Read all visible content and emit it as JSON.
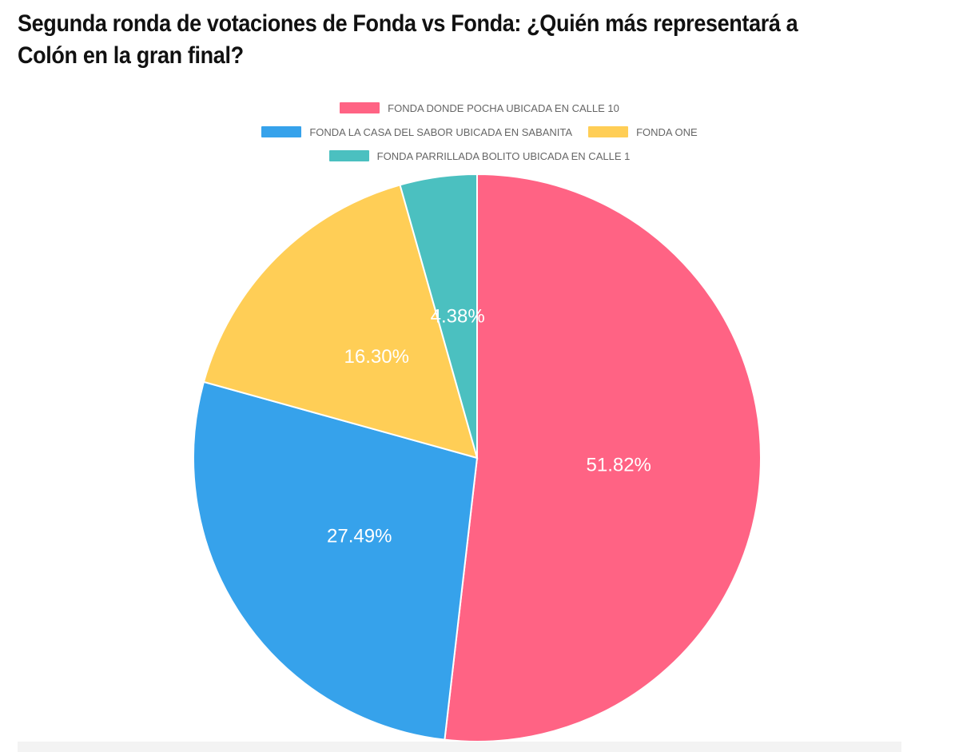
{
  "chart_data": {
    "type": "pie",
    "title": "Segunda ronda de votaciones de Fonda vs Fonda: ¿Quién más representará a Colón en la gran final?",
    "legend_position": "top",
    "slices": [
      {
        "label": "FONDA DONDE POCHA UBICADA EN CALLE 10",
        "value": 51.82,
        "value_label": "51.82%",
        "color": "#FF6384"
      },
      {
        "label": "FONDA LA CASA DEL SABOR UBICADA EN SABANITA",
        "value": 27.49,
        "value_label": "27.49%",
        "color": "#36A2EB"
      },
      {
        "label": "FONDA ONE",
        "value": 16.3,
        "value_label": "16.30%",
        "color": "#FFCE56"
      },
      {
        "label": "FONDA PARRILLADA BOLITO UBICADA EN CALLE 1",
        "value": 4.38,
        "value_label": "4.38%",
        "color": "#4BC0C0"
      }
    ]
  }
}
